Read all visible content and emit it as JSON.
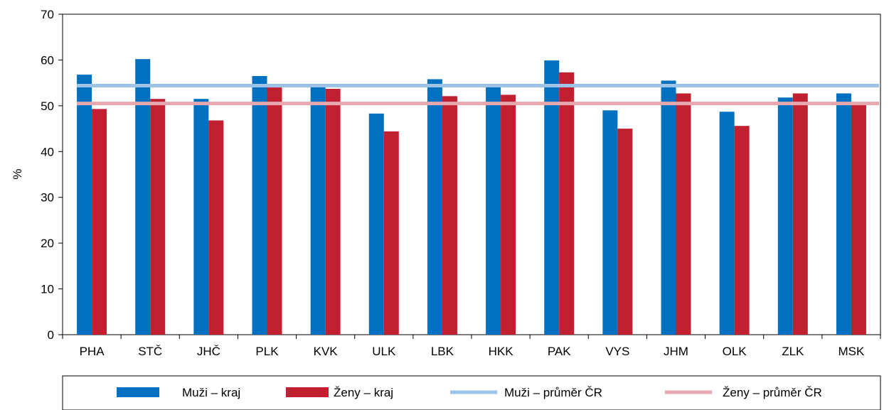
{
  "chart_data": {
    "type": "bar",
    "ylabel": "%",
    "ylim": [
      0,
      70
    ],
    "yticks": [
      0,
      10,
      20,
      30,
      40,
      50,
      60,
      70
    ],
    "grid": false,
    "legend_position": "bottom",
    "categories": [
      "PHA",
      "STČ",
      "JHČ",
      "PLK",
      "KVK",
      "ULK",
      "LBK",
      "HKK",
      "PAK",
      "VYS",
      "JHM",
      "OLK",
      "ZLK",
      "MSK"
    ],
    "series": [
      {
        "name": "Muži – kraj",
        "kind": "bar",
        "color": "#0070C0",
        "values": [
          56.8,
          60.2,
          51.5,
          56.5,
          54.2,
          48.3,
          55.8,
          54.2,
          59.9,
          49.0,
          55.5,
          48.7,
          51.8,
          52.7
        ]
      },
      {
        "name": "Ženy – kraj",
        "kind": "bar",
        "color": "#C0202F",
        "values": [
          49.3,
          51.5,
          46.8,
          54.0,
          53.7,
          44.4,
          52.1,
          52.4,
          57.3,
          45.0,
          52.7,
          45.6,
          52.7,
          50.2
        ]
      },
      {
        "name": "Muži – průměr ČR",
        "kind": "line",
        "color": "#9DC3E6",
        "value": 54.4
      },
      {
        "name": "Ženy – průměr ČR",
        "kind": "line",
        "color": "#E6A8AE",
        "value": 50.5
      }
    ]
  }
}
